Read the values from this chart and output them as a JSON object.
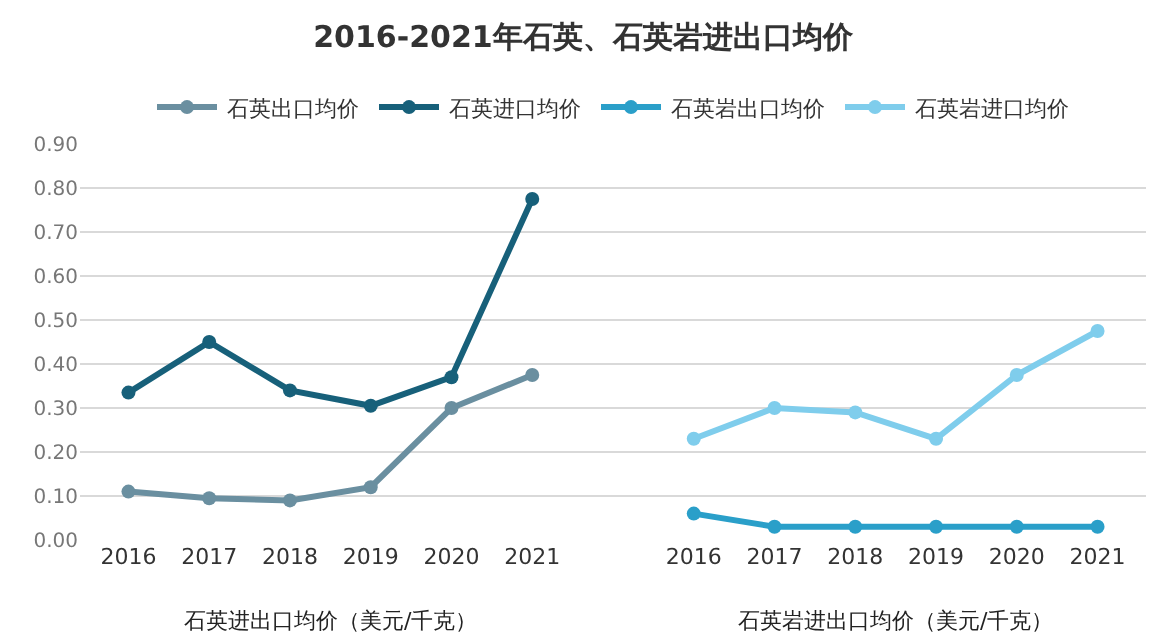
{
  "chart_data": {
    "type": "line",
    "title": "2016-2021年石英、石英岩进出口均价",
    "categories": [
      "2016",
      "2017",
      "2018",
      "2019",
      "2020",
      "2021",
      null,
      "2016",
      "2017",
      "2018",
      "2019",
      "2020",
      "2021"
    ],
    "series": [
      {
        "name": "石英出口均价",
        "color": "#6a8fa0",
        "values": [
          0.11,
          0.095,
          0.09,
          0.12,
          0.3,
          0.375,
          null,
          null,
          null,
          null,
          null,
          null,
          null
        ]
      },
      {
        "name": "石英进口均价",
        "color": "#17607a",
        "values": [
          0.335,
          0.45,
          0.34,
          0.305,
          0.37,
          0.775,
          null,
          null,
          null,
          null,
          null,
          null,
          null
        ]
      },
      {
        "name": "石英岩出口均价",
        "color": "#2a9fc9",
        "values": [
          null,
          null,
          null,
          null,
          null,
          null,
          null,
          0.06,
          0.03,
          0.03,
          0.03,
          0.03,
          0.03
        ]
      },
      {
        "name": "石英岩进口均价",
        "color": "#7fcdec",
        "values": [
          null,
          null,
          null,
          null,
          null,
          null,
          null,
          0.23,
          0.3,
          0.29,
          0.23,
          0.375,
          0.475
        ]
      }
    ],
    "ylim": [
      0,
      0.9
    ],
    "yticks": [
      {
        "value": 0,
        "label": "0.00"
      },
      {
        "value": 0.1,
        "label": "0.10"
      },
      {
        "value": 0.2,
        "label": "0.20"
      },
      {
        "value": 0.3,
        "label": "0.30"
      },
      {
        "value": 0.4,
        "label": "0.40"
      },
      {
        "value": 0.5,
        "label": "0.50"
      },
      {
        "value": 0.6,
        "label": "0.60"
      },
      {
        "value": 0.7,
        "label": "0.70"
      },
      {
        "value": 0.8,
        "label": "0.80"
      },
      {
        "value": 0.9,
        "label": "0.90"
      }
    ],
    "annotations": [
      "石英进出口均价（美元/千克）",
      "石英岩进出口均价（美元/千克）"
    ],
    "grid": "y",
    "legend": "top",
    "marker": "circle",
    "line_style": "solid"
  }
}
